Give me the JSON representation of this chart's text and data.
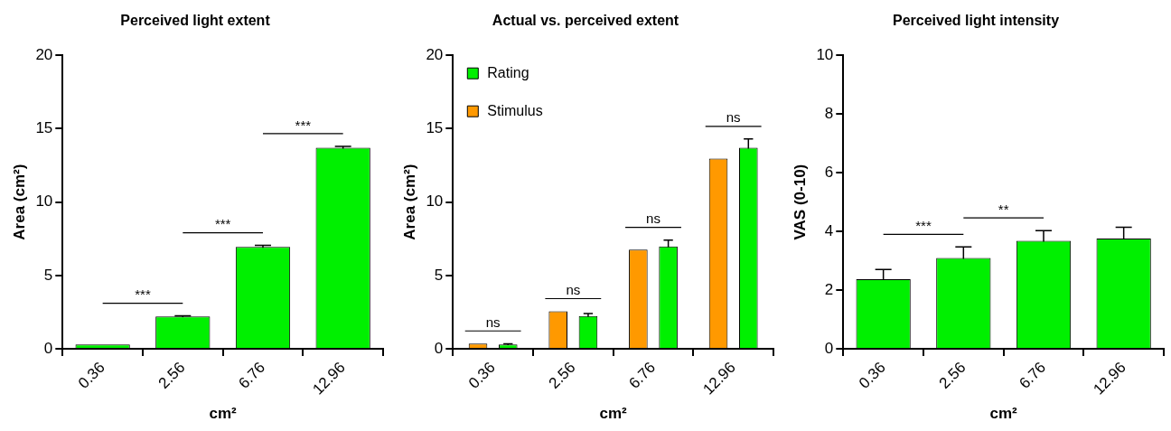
{
  "chart_data": [
    {
      "type": "bar",
      "title": "Perceived light extent",
      "xlabel": "cm²",
      "ylabel": "Area (cm²)",
      "categories": [
        "0.36",
        "2.56",
        "6.76",
        "12.96"
      ],
      "color": "#00f000",
      "values": [
        0.3,
        2.2,
        6.95,
        13.7
      ],
      "errors": [
        null,
        0.05,
        0.1,
        0.1
      ],
      "ylim": [
        0,
        20
      ],
      "yticks": [
        0,
        5,
        10,
        15,
        20
      ],
      "annotations": [
        "***",
        "***",
        "***"
      ]
    },
    {
      "type": "bar",
      "title": "Actual vs. perceived extent",
      "xlabel": "cm²",
      "ylabel": "Area (cm²)",
      "categories": [
        "0.36",
        "2.56",
        "6.76",
        "12.96"
      ],
      "series": [
        {
          "name": "Stimulus",
          "color": "#ff9900",
          "values": [
            0.36,
            2.56,
            6.76,
            12.96
          ]
        },
        {
          "name": "Rating",
          "color": "#00f000",
          "values": [
            0.3,
            2.24,
            6.97,
            13.7
          ],
          "errors": [
            0.05,
            0.17,
            0.44,
            0.6
          ]
        }
      ],
      "ylim": [
        0,
        20
      ],
      "yticks": [
        0,
        5,
        10,
        15,
        20
      ],
      "legend": "top left",
      "annotations": [
        "ns",
        "ns",
        "ns",
        "ns"
      ]
    },
    {
      "type": "bar",
      "title": "Perceived light intensity",
      "xlabel": "cm²",
      "ylabel": "VAS (0-10)",
      "categories": [
        "0.36",
        "2.56",
        "6.76",
        "12.96"
      ],
      "color": "#00f000",
      "values": [
        2.37,
        3.1,
        3.68,
        3.76
      ],
      "errors": [
        0.33,
        0.37,
        0.35,
        0.38
      ],
      "ylim": [
        0,
        10
      ],
      "yticks": [
        0,
        2,
        4,
        6,
        8,
        10
      ],
      "annotations": [
        "***",
        "**"
      ]
    }
  ]
}
